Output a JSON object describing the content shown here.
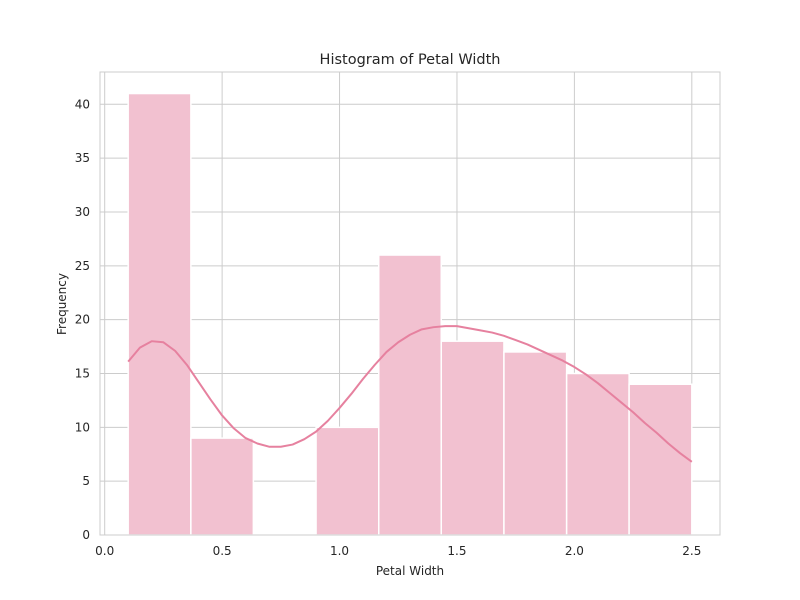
{
  "chart_data": {
    "type": "bar",
    "title": "Histogram of Petal Width",
    "xlabel": "Petal Width",
    "ylabel": "Frequency",
    "xlim": [
      -0.02,
      2.62
    ],
    "ylim": [
      0,
      43
    ],
    "xticks": [
      0.0,
      0.5,
      1.0,
      1.5,
      2.0,
      2.5
    ],
    "xtick_labels": [
      "0.0",
      "0.5",
      "1.0",
      "1.5",
      "2.0",
      "2.5"
    ],
    "yticks": [
      0,
      5,
      10,
      15,
      20,
      25,
      30,
      35,
      40
    ],
    "ytick_labels": [
      "0",
      "5",
      "10",
      "15",
      "20",
      "25",
      "30",
      "35",
      "40"
    ],
    "grid": true,
    "bins": [
      {
        "x0": 0.1,
        "x1": 0.367,
        "value": 41
      },
      {
        "x0": 0.367,
        "x1": 0.633,
        "value": 9
      },
      {
        "x0": 0.633,
        "x1": 0.9,
        "value": 0
      },
      {
        "x0": 0.9,
        "x1": 1.167,
        "value": 10
      },
      {
        "x0": 1.167,
        "x1": 1.433,
        "value": 26
      },
      {
        "x0": 1.433,
        "x1": 1.7,
        "value": 18
      },
      {
        "x0": 1.7,
        "x1": 1.967,
        "value": 17
      },
      {
        "x0": 1.967,
        "x1": 2.233,
        "value": 15
      },
      {
        "x0": 2.233,
        "x1": 2.5,
        "value": 14
      }
    ],
    "kde": {
      "x": [
        0.1,
        0.15,
        0.2,
        0.25,
        0.3,
        0.35,
        0.4,
        0.45,
        0.5,
        0.55,
        0.6,
        0.65,
        0.7,
        0.75,
        0.8,
        0.85,
        0.9,
        0.95,
        1.0,
        1.05,
        1.1,
        1.15,
        1.2,
        1.25,
        1.3,
        1.35,
        1.4,
        1.45,
        1.5,
        1.55,
        1.6,
        1.65,
        1.7,
        1.75,
        1.8,
        1.85,
        1.9,
        1.95,
        2.0,
        2.05,
        2.1,
        2.15,
        2.2,
        2.25,
        2.3,
        2.35,
        2.4,
        2.45,
        2.5
      ],
      "y": [
        16.1,
        17.4,
        18.0,
        17.9,
        17.1,
        15.8,
        14.2,
        12.6,
        11.1,
        9.9,
        9.0,
        8.5,
        8.2,
        8.2,
        8.4,
        8.9,
        9.6,
        10.6,
        11.8,
        13.1,
        14.5,
        15.8,
        17.0,
        17.9,
        18.6,
        19.1,
        19.3,
        19.4,
        19.4,
        19.2,
        19.0,
        18.8,
        18.5,
        18.1,
        17.7,
        17.2,
        16.7,
        16.2,
        15.6,
        14.9,
        14.1,
        13.2,
        12.3,
        11.4,
        10.4,
        9.5,
        8.5,
        7.6,
        6.8
      ]
    },
    "colors": {
      "bar_fill": "#f2c1d0",
      "bar_edge": "#ffffff",
      "kde_line": "#e6819f",
      "grid": "#cccccc",
      "axes_edge": "#cccccc",
      "text": "#262626"
    }
  }
}
